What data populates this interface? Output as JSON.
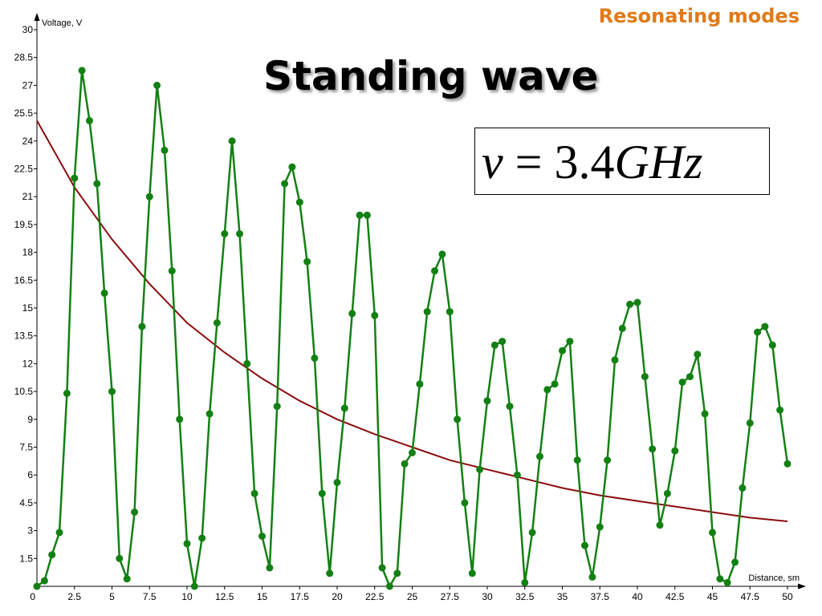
{
  "header": {
    "section_title": "Resonating modes",
    "slide_title": "Standing wave"
  },
  "formula": {
    "symbol": "ν",
    "equals": "=",
    "number": "3.4",
    "unit": "GHz"
  },
  "colors": {
    "measured": "#138013",
    "fit": "#8b0c0c",
    "section_title": "#e07a18"
  },
  "chart_data": {
    "type": "line",
    "xlabel": "Distance, sm",
    "ylabel": "Voltage, V",
    "xlim": [
      0,
      50
    ],
    "ylim": [
      0,
      30
    ],
    "x_ticks": [
      "0",
      "2.5",
      "5",
      "7.5",
      "10",
      "12.5",
      "15",
      "17.5",
      "20",
      "22.5",
      "25",
      "27.5",
      "30",
      "32.5",
      "35",
      "37.5",
      "40",
      "42.5",
      "45",
      "47.5",
      "50"
    ],
    "y_ticks": [
      "1.5",
      "3",
      "4.5",
      "6",
      "7.5",
      "9",
      "10.5",
      "12",
      "13.5",
      "15",
      "16.5",
      "18",
      "19.5",
      "21",
      "22.5",
      "24",
      "25.5",
      "27",
      "28.5",
      "30"
    ],
    "grid": false,
    "series": [
      {
        "type": "line-marker",
        "x": [
          0,
          0.5,
          1,
          1.5,
          2,
          2.5,
          3,
          3.5,
          4,
          4.5,
          5,
          5.5,
          6,
          6.5,
          7,
          7.5,
          8,
          8.5,
          9,
          9.5,
          10,
          10.5,
          11,
          11.5,
          12,
          12.5,
          13,
          13.5,
          14,
          14.5,
          15,
          15.5,
          16,
          16.5,
          17,
          17.5,
          18,
          18.5,
          19,
          19.5,
          20,
          20.5,
          21,
          21.5,
          22,
          22.5,
          23,
          23.5,
          24,
          24.5,
          25,
          25.5,
          26,
          26.5,
          27,
          27.5,
          28,
          28.5,
          29,
          29.5,
          30,
          30.5,
          31,
          31.5,
          32,
          32.5,
          33,
          33.5,
          34,
          34.5,
          35,
          35.5,
          36,
          36.5,
          37,
          37.5,
          38,
          38.5,
          39,
          39.5,
          40,
          40.5,
          41,
          41.5,
          42,
          42.5,
          43,
          43.5,
          44,
          44.5,
          45,
          45.5,
          46,
          46.5,
          47,
          47.5,
          48,
          48.5,
          49,
          49.5,
          50
        ],
        "y": [
          0,
          0.3,
          1.7,
          2.9,
          10.4,
          22,
          27.8,
          25.1,
          21.7,
          15.8,
          10.5,
          1.5,
          0.4,
          4,
          14,
          21,
          27,
          23.5,
          17,
          9,
          2.3,
          0,
          2.6,
          9.3,
          14.2,
          19,
          24,
          19,
          12,
          5,
          2.7,
          1,
          9.7,
          21.7,
          22.6,
          20.7,
          17.5,
          12.3,
          5,
          0.7,
          5.6,
          9.6,
          14.7,
          20,
          20,
          14.6,
          1,
          0,
          0.7,
          6.6,
          7.2,
          10.9,
          14.8,
          17,
          17.9,
          14.8,
          9,
          4.5,
          0.7,
          6.3,
          10,
          13,
          13.2,
          9.7,
          6,
          0.2,
          2.9,
          7,
          10.6,
          10.9,
          12.7,
          13.2,
          6.8,
          2.2,
          0.5,
          3.2,
          6.8,
          12.2,
          13.9,
          15.2,
          15.3,
          11.3,
          7.4,
          3.3,
          5,
          7.3,
          11,
          11.3,
          12.5,
          9.3,
          2.9,
          0.4,
          0.2,
          1.3,
          5.3,
          8.8,
          13.7,
          14,
          13,
          9.5,
          6.6
        ]
      },
      {
        "type": "line",
        "x": [
          0,
          2.5,
          5,
          7.5,
          10,
          12.5,
          15,
          17.5,
          20,
          22.5,
          25,
          27.5,
          30,
          32.5,
          35,
          37.5,
          40,
          42.5,
          45,
          47.5,
          50
        ],
        "y": [
          25.1,
          21.5,
          18.7,
          16.3,
          14.2,
          12.6,
          11.2,
          10.0,
          9.0,
          8.2,
          7.5,
          6.8,
          6.3,
          5.8,
          5.3,
          4.9,
          4.6,
          4.3,
          4.0,
          3.7,
          3.5
        ]
      }
    ]
  }
}
